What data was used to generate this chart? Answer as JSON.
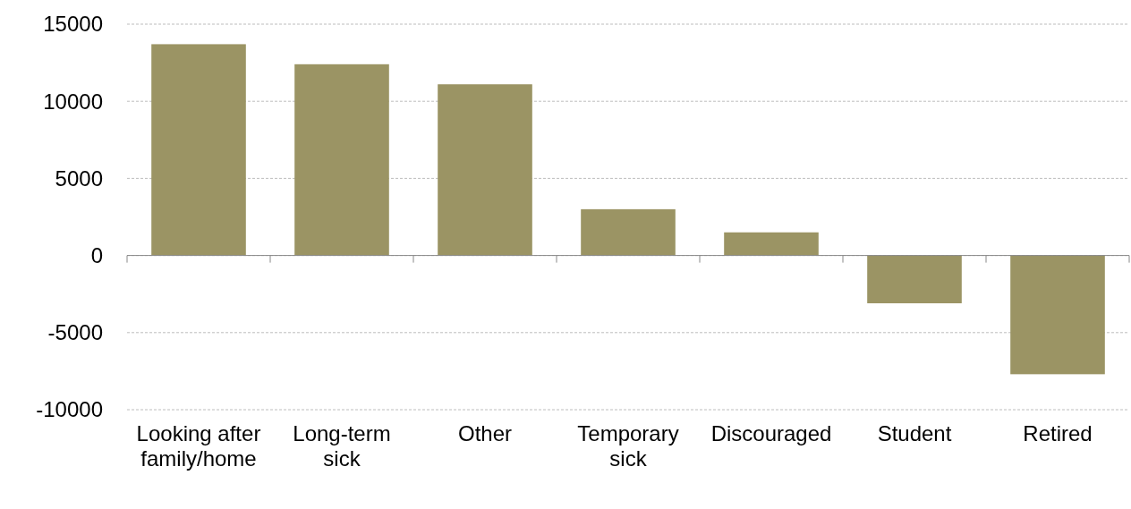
{
  "chart_data": {
    "type": "bar",
    "categories": [
      "Looking after family/home",
      "Long-term sick",
      "Other",
      "Temporary sick",
      "Discouraged",
      "Student",
      "Retired"
    ],
    "values": [
      13700,
      12400,
      11100,
      3000,
      1500,
      -3100,
      -7700
    ],
    "color": "#9b9464",
    "ylim": [
      -10000,
      15000
    ],
    "yticks": [
      -10000,
      -5000,
      0,
      5000,
      10000,
      15000
    ],
    "grid": "y"
  }
}
